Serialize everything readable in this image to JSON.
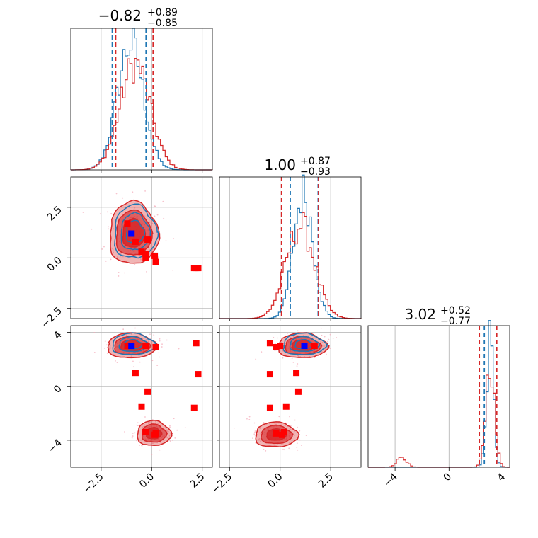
{
  "chart_data": {
    "type": "corner",
    "colors": {
      "series_a": "#1f77b4",
      "series_b": "#d62728",
      "markers": "#ff0000",
      "truth": "#0000ff"
    },
    "titles": [
      {
        "main": "−0.82",
        "sup": "+0.89",
        "sub": "−0.85"
      },
      {
        "main": "1.00",
        "sup": "+0.87",
        "sub": "−0.93"
      },
      {
        "main": "3.02",
        "sup": "+0.52",
        "sub": "−0.77"
      }
    ],
    "ranges": [
      [
        -4.0,
        3.0
      ],
      [
        -3.0,
        4.0
      ],
      [
        -6.0,
        4.5
      ]
    ],
    "ticks": [
      {
        "values": [
          -2.5,
          0.0,
          2.5
        ],
        "labels": [
          "−2.5",
          "0.0",
          "2.5"
        ]
      },
      {
        "values": [
          -2.5,
          0.0,
          2.5
        ],
        "labels": [
          "−2.5",
          "0.0",
          "2.5"
        ]
      },
      {
        "values": [
          -4,
          0,
          4
        ],
        "labels": [
          "−4",
          "0",
          "4"
        ]
      }
    ],
    "grid": true,
    "quantile_lines": {
      "p0": {
        "a": [
          -1.95,
          -0.28
        ],
        "b": [
          -1.78,
          0.07
        ]
      },
      "p1": {
        "a": [
          0.5,
          1.88
        ],
        "b": [
          0.07,
          1.9
        ]
      },
      "p2": {
        "a": [
          2.62,
          3.52
        ],
        "b": [
          2.25,
          3.54
        ]
      }
    },
    "truth": [
      -1.0,
      1.2,
      3.0
    ],
    "markers": [
      [
        -1.2,
        1.7,
        3.0
      ],
      [
        -0.8,
        0.8,
        1.0
      ],
      [
        -0.3,
        0.0,
        3.0
      ],
      [
        -0.2,
        0.9,
        -0.4
      ],
      [
        0.2,
        -0.2,
        2.9
      ],
      [
        0.2,
        -0.2,
        -3.5
      ],
      [
        -0.5,
        0.3,
        -1.5
      ],
      [
        2.1,
        -0.5,
        -1.6
      ],
      [
        2.2,
        -0.5,
        3.2
      ],
      [
        2.3,
        -0.5,
        0.9
      ],
      [
        -0.3,
        0.2,
        -3.4
      ],
      [
        0.15,
        0.1,
        -3.6
      ]
    ]
  }
}
